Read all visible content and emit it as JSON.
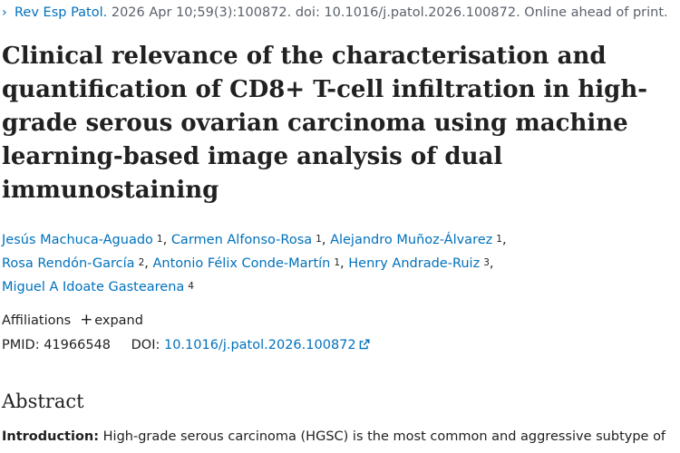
{
  "citation": {
    "journal": "Rev Esp Patol.",
    "details": "2026 Apr 10;59(3):100872. doi: 10.1016/j.patol.2026.100872. Online ahead of print."
  },
  "title": "Clinical relevance of the characterisation and quantification of CD8+ T-cell infiltration in high-grade serous ovarian carcinoma using machine learning-based image analysis of dual immunostaining",
  "authors": [
    {
      "name": "Jesús Machuca-Aguado",
      "aff": "1"
    },
    {
      "name": "Carmen Alfonso-Rosa",
      "aff": "1"
    },
    {
      "name": "Alejandro Muñoz-Álvarez",
      "aff": "1"
    },
    {
      "name": "Rosa Rendón-García",
      "aff": "2"
    },
    {
      "name": "Antonio Félix Conde-Martín",
      "aff": "1"
    },
    {
      "name": "Henry Andrade-Ruiz",
      "aff": "3"
    },
    {
      "name": "Miguel A Idoate Gastearena",
      "aff": "4"
    }
  ],
  "affiliations": {
    "label": "Affiliations",
    "expand_label": "expand"
  },
  "identifiers": {
    "pmid_label": "PMID:",
    "pmid": "41966548",
    "doi_label": "DOI:",
    "doi": "10.1016/j.patol.2026.100872"
  },
  "abstract": {
    "heading": "Abstract",
    "intro_label": "Introduction:",
    "intro_text": "High-grade serous carcinoma (HGSC) is the most common and aggressive subtype of"
  },
  "icons": {
    "citation_chevron": "chevron-right-icon",
    "expand": "plus-icon",
    "external_link": "external-link-icon"
  },
  "colors": {
    "link": "#0071bc",
    "text": "#212121",
    "muted": "#5b616b"
  }
}
